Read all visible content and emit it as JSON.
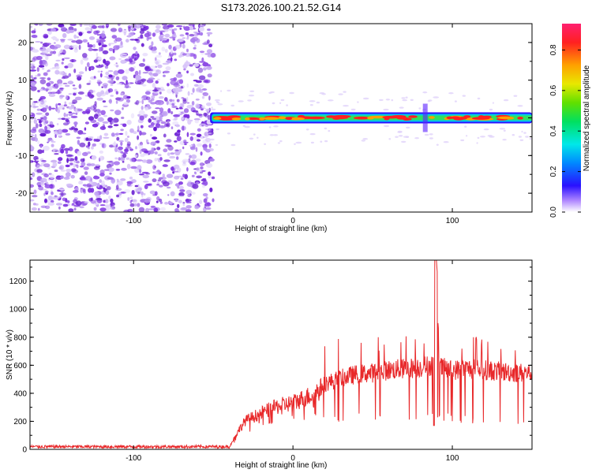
{
  "title": "S173.2026.100.21.52.G14",
  "colors": {
    "snr_line": "#e8282a",
    "noise_dot": "#8a2be2",
    "axis": "#000000"
  },
  "chart_data": [
    {
      "type": "heatmap",
      "xlabel": "Height of straight line (km)",
      "ylabel": "Frequency (Hz)",
      "xlim": [
        -165,
        150
      ],
      "ylim": [
        -25,
        25
      ],
      "xticks": [
        -100,
        0,
        100
      ],
      "yticks": [
        -20,
        -10,
        0,
        10,
        20
      ],
      "noise_region_x": [
        -165,
        -52
      ],
      "signal_start_x": -52,
      "signal_center_hz": 0,
      "colorbar": {
        "label": "Normalized spectral amplitude",
        "range": [
          0,
          0.93
        ],
        "ticks": [
          0.0,
          0.2,
          0.4,
          0.6,
          0.8
        ],
        "tick_labels": [
          "0.0",
          "0.2",
          "0.4",
          "0.6",
          "0.8"
        ]
      }
    },
    {
      "type": "line",
      "xlabel": "Height of straight line (km)",
      "ylabel": "SNR (10 * v/v)",
      "xlim": [
        -165,
        150
      ],
      "ylim": [
        0,
        1350
      ],
      "xticks": [
        -100,
        0,
        100
      ],
      "yticks": [
        0,
        200,
        400,
        600,
        800,
        1000,
        1200
      ],
      "series": [
        {
          "name": "SNR",
          "x": [
            -165,
            -120,
            -80,
            -40,
            -38,
            -35,
            -30,
            -20,
            -10,
            0,
            10,
            20,
            30,
            40,
            50,
            60,
            70,
            80,
            88,
            90,
            92,
            100,
            110,
            120,
            130,
            140,
            150
          ],
          "y": [
            15,
            15,
            15,
            15,
            60,
            130,
            220,
            280,
            330,
            360,
            410,
            480,
            520,
            550,
            560,
            580,
            590,
            600,
            620,
            1350,
            600,
            580,
            590,
            580,
            570,
            560,
            560
          ]
        }
      ]
    }
  ]
}
